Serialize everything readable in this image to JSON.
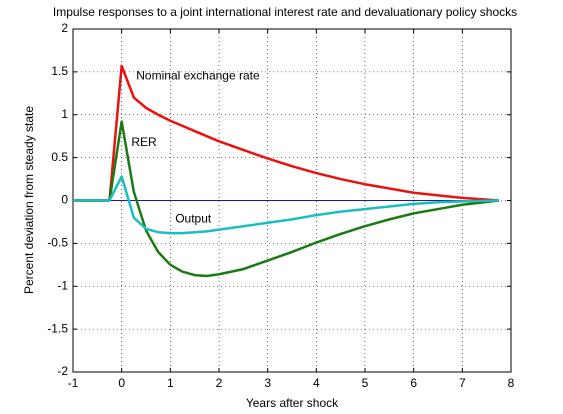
{
  "chart_data": {
    "type": "line",
    "title": "Impulse responses to a joint international interest rate and devaluationary policy shocks",
    "xlabel": "Years after shock",
    "ylabel": "Percent deviation from steady state",
    "x": [
      -1,
      -0.25,
      0,
      0.25,
      0.5,
      0.75,
      1,
      1.25,
      1.5,
      1.75,
      2,
      2.5,
      3,
      3.5,
      4,
      4.5,
      5,
      5.5,
      6,
      6.5,
      7,
      7.75
    ],
    "series": [
      {
        "name": "Nominal exchange rate",
        "color": "#e8120f",
        "values": [
          0,
          0,
          1.57,
          1.2,
          1.08,
          1.0,
          0.93,
          0.87,
          0.81,
          0.75,
          0.69,
          0.59,
          0.49,
          0.4,
          0.32,
          0.25,
          0.19,
          0.14,
          0.09,
          0.06,
          0.03,
          0
        ]
      },
      {
        "name": "RER",
        "color": "#1a7a14",
        "values": [
          0,
          0,
          0.92,
          0.1,
          -0.35,
          -0.6,
          -0.75,
          -0.83,
          -0.87,
          -0.88,
          -0.86,
          -0.8,
          -0.7,
          -0.6,
          -0.49,
          -0.39,
          -0.3,
          -0.22,
          -0.15,
          -0.1,
          -0.05,
          0
        ]
      },
      {
        "name": "Output",
        "color": "#1cbcc0",
        "values": [
          0,
          0,
          0.28,
          -0.2,
          -0.33,
          -0.37,
          -0.38,
          -0.38,
          -0.37,
          -0.36,
          -0.34,
          -0.3,
          -0.26,
          -0.22,
          -0.17,
          -0.13,
          -0.1,
          -0.07,
          -0.04,
          -0.02,
          -0.01,
          0
        ]
      }
    ],
    "hline": 0,
    "hline_color": "#1a1aa0",
    "xlim": [
      -1,
      8
    ],
    "xticks": [
      -1,
      0,
      1,
      2,
      3,
      4,
      5,
      6,
      7,
      8
    ],
    "ylim": [
      -2,
      2
    ],
    "yticks": [
      -2,
      -1.5,
      -1,
      -0.5,
      0,
      0.5,
      1,
      1.5,
      2
    ],
    "grid": true
  }
}
